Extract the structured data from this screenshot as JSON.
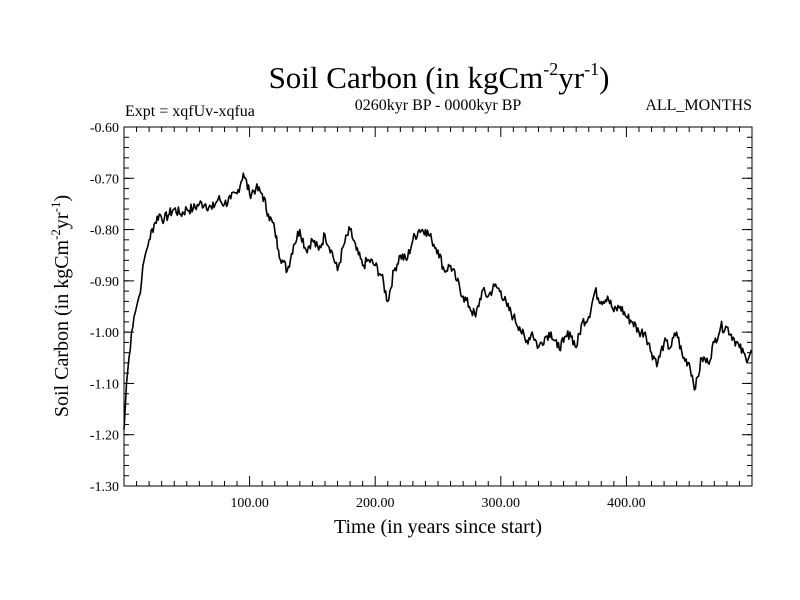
{
  "chart_data": {
    "type": "line",
    "title": {
      "main": "Soil Carbon (in kgCm",
      "sup1": "-2",
      "mid": "yr",
      "sup2": "-1",
      "end": ")"
    },
    "subtitle_left": "Expt = xqfUv-xqfua",
    "subtitle_center": "0260kyr BP - 0000kyr BP",
    "subtitle_right": "ALL_MONTHS",
    "xlabel": "Time (in years since start)",
    "ylabel": {
      "main": "Soil Carbon (in kgCm",
      "sup1": "-2",
      "mid": "yr",
      "sup2": "-1",
      "end": ")"
    },
    "xlim": [
      0,
      500
    ],
    "ylim": [
      -1.3,
      -0.6
    ],
    "x_ticks": [
      100,
      200,
      300,
      400
    ],
    "x_tick_labels": [
      "100.00",
      "200.00",
      "300.00",
      "400.00"
    ],
    "y_ticks": [
      -1.3,
      -1.2,
      -1.1,
      -1.0,
      -0.9,
      -0.8,
      -0.7,
      -0.6
    ],
    "y_tick_labels": [
      "-1.30",
      "-1.20",
      "-1.10",
      "-1.00",
      "-0.90",
      "-0.80",
      "-0.70",
      "-0.60"
    ],
    "grid": false,
    "series": [
      {
        "name": "Soil Carbon",
        "color": "#000000",
        "x": [
          0,
          2,
          4,
          6,
          8,
          10,
          12,
          14,
          16,
          18,
          20,
          24,
          28,
          32,
          36,
          40,
          45,
          50,
          55,
          60,
          65,
          70,
          75,
          80,
          85,
          90,
          95,
          100,
          105,
          110,
          115,
          120,
          123,
          126,
          130,
          135,
          140,
          145,
          150,
          155,
          160,
          165,
          170,
          175,
          180,
          185,
          190,
          195,
          200,
          205,
          210,
          215,
          220,
          225,
          230,
          235,
          240,
          245,
          250,
          255,
          260,
          265,
          270,
          275,
          280,
          285,
          290,
          295,
          300,
          305,
          310,
          315,
          320,
          325,
          330,
          335,
          340,
          345,
          350,
          355,
          360,
          365,
          370,
          375,
          380,
          385,
          390,
          395,
          400,
          405,
          410,
          415,
          420,
          425,
          430,
          435,
          440,
          445,
          450,
          455,
          460,
          465,
          470,
          475,
          480,
          485,
          490,
          495,
          500
        ],
        "y": [
          -1.19,
          -1.1,
          -1.05,
          -1.0,
          -0.97,
          -0.95,
          -0.93,
          -0.9,
          -0.86,
          -0.84,
          -0.82,
          -0.79,
          -0.77,
          -0.78,
          -0.77,
          -0.76,
          -0.77,
          -0.76,
          -0.76,
          -0.75,
          -0.75,
          -0.76,
          -0.74,
          -0.75,
          -0.74,
          -0.73,
          -0.69,
          -0.73,
          -0.72,
          -0.73,
          -0.77,
          -0.8,
          -0.84,
          -0.86,
          -0.88,
          -0.83,
          -0.8,
          -0.84,
          -0.82,
          -0.84,
          -0.81,
          -0.84,
          -0.88,
          -0.83,
          -0.8,
          -0.84,
          -0.87,
          -0.86,
          -0.87,
          -0.89,
          -0.94,
          -0.88,
          -0.85,
          -0.86,
          -0.82,
          -0.8,
          -0.8,
          -0.82,
          -0.84,
          -0.88,
          -0.87,
          -0.9,
          -0.93,
          -0.95,
          -0.97,
          -0.92,
          -0.93,
          -0.91,
          -0.92,
          -0.95,
          -0.97,
          -0.99,
          -1.02,
          -1.0,
          -1.03,
          -1.01,
          -1.0,
          -1.03,
          -1.02,
          -1.0,
          -1.03,
          -0.98,
          -0.97,
          -0.92,
          -0.94,
          -0.93,
          -0.96,
          -0.95,
          -0.97,
          -0.98,
          -1.0,
          -1.0,
          -1.04,
          -1.06,
          -1.02,
          -1.03,
          -1.0,
          -1.05,
          -1.06,
          -1.11,
          -1.05,
          -1.06,
          -1.02,
          -0.99,
          -0.99,
          -1.01,
          -1.03,
          -1.05,
          -1.04
        ]
      }
    ]
  }
}
